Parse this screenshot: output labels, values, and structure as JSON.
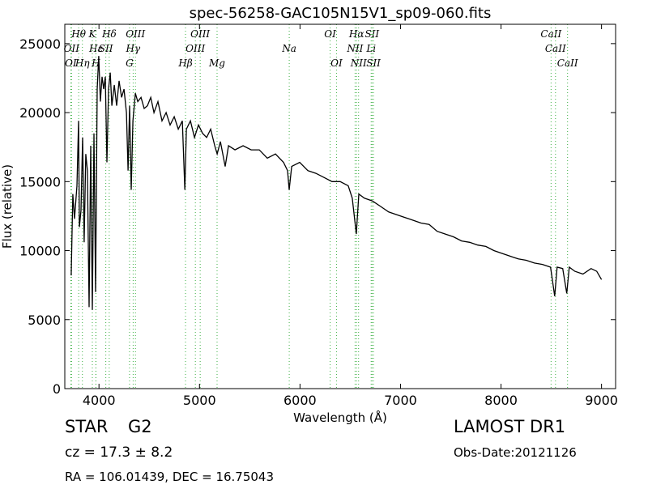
{
  "chart_data": {
    "type": "line",
    "title": "spec-56258-GAC105N15V1_sp09-060.fits",
    "x_label": "Wavelength (Å)",
    "y_label": "Flux (relative)",
    "xlim": [
      3660,
      9140
    ],
    "ylim": [
      0,
      26400
    ],
    "xticks": [
      4000,
      5000,
      6000,
      7000,
      8000,
      9000
    ],
    "yticks": [
      0,
      5000,
      10000,
      15000,
      20000,
      25000
    ],
    "color": "#000000",
    "line_color": "#3cb043",
    "x": [
      3724,
      3740,
      3757,
      3781,
      3797,
      3805,
      3821,
      3837,
      3853,
      3869,
      3885,
      3902,
      3918,
      3934,
      3950,
      3966,
      3982,
      3998,
      4014,
      4031,
      4047,
      4063,
      4079,
      4095,
      4112,
      4128,
      4152,
      4176,
      4200,
      4225,
      4249,
      4273,
      4289,
      4305,
      4321,
      4338,
      4362,
      4386,
      4418,
      4450,
      4482,
      4515,
      4547,
      4587,
      4627,
      4668,
      4708,
      4749,
      4789,
      4829,
      4854,
      4870,
      4910,
      4950,
      4990,
      5031,
      5071,
      5111,
      5152,
      5176,
      5208,
      5256,
      5289,
      5353,
      5434,
      5514,
      5595,
      5675,
      5756,
      5836,
      5876,
      5892,
      5917,
      5997,
      6078,
      6158,
      6239,
      6319,
      6400,
      6480,
      6520,
      6560,
      6585,
      6641,
      6721,
      6802,
      6882,
      6963,
      7043,
      7124,
      7204,
      7285,
      7365,
      7446,
      7527,
      7607,
      7688,
      7768,
      7849,
      7929,
      8010,
      8090,
      8171,
      8251,
      8332,
      8412,
      8493,
      8534,
      8558,
      8614,
      8654,
      8679,
      8735,
      8815,
      8896,
      8952,
      9000
    ],
    "values": [
      8200,
      14100,
      12300,
      14700,
      19400,
      11700,
      12900,
      18200,
      10600,
      17000,
      15800,
      5900,
      17600,
      5700,
      18500,
      7000,
      21700,
      24100,
      20800,
      22600,
      21700,
      22600,
      16400,
      21700,
      22900,
      20500,
      22000,
      20500,
      22300,
      21100,
      21700,
      20000,
      15800,
      20500,
      14400,
      19400,
      21400,
      20800,
      21100,
      20300,
      20500,
      21100,
      20000,
      20800,
      19400,
      20000,
      19100,
      19700,
      18800,
      19400,
      14400,
      18800,
      19400,
      18200,
      19100,
      18500,
      18200,
      18800,
      17600,
      17000,
      17900,
      16100,
      17600,
      17300,
      17600,
      17300,
      17300,
      16700,
      17000,
      16400,
      15800,
      14400,
      16100,
      16400,
      15800,
      15600,
      15300,
      15000,
      15000,
      14700,
      13800,
      11200,
      14100,
      13800,
      13600,
      13200,
      12800,
      12600,
      12400,
      12200,
      12000,
      11900,
      11400,
      11200,
      11000,
      10700,
      10600,
      10400,
      10300,
      10000,
      9800,
      9600,
      9400,
      9300,
      9100,
      9000,
      8800,
      6700,
      8800,
      8700,
      6900,
      8800,
      8500,
      8300,
      8700,
      8500,
      7900
    ],
    "lines": [
      {
        "label": "Hθ",
        "x": 3798
      },
      {
        "label": "OII",
        "x": 3727
      },
      {
        "label": "OI",
        "x": 3720
      },
      {
        "label": "Hη",
        "x": 3835
      },
      {
        "label": "K",
        "x": 3934
      },
      {
        "label": "Hε",
        "x": 3970
      },
      {
        "label": "H",
        "x": 3969
      },
      {
        "label": "SII",
        "x": 4068
      },
      {
        "label": "Hδ",
        "x": 4102
      },
      {
        "label": "OIII",
        "x": 4363
      },
      {
        "label": "Hγ",
        "x": 4340
      },
      {
        "label": "G",
        "x": 4304
      },
      {
        "label": "OIII",
        "x": 5007
      },
      {
        "label": "OIII",
        "x": 4959
      },
      {
        "label": "Hβ",
        "x": 4861
      },
      {
        "label": "Mg",
        "x": 5175
      },
      {
        "label": "Na",
        "x": 5893
      },
      {
        "label": "OI",
        "x": 6300
      },
      {
        "label": "OI",
        "x": 6363
      },
      {
        "label": "Hα",
        "x": 6563
      },
      {
        "label": "NII",
        "x": 6548
      },
      {
        "label": "NII",
        "x": 6583
      },
      {
        "label": "SII",
        "x": 6717
      },
      {
        "label": "Li",
        "x": 6708
      },
      {
        "label": "SII",
        "x": 6731
      },
      {
        "label": "CaII",
        "x": 8498
      },
      {
        "label": "CaII",
        "x": 8542
      },
      {
        "label": "CaII",
        "x": 8662
      }
    ]
  },
  "info": {
    "class": "STAR",
    "subclass": "G2",
    "cz": "cz = 17.3 ± 8.2",
    "coords": "RA = 106.01439, DEC = 16.75043",
    "survey": "LAMOST DR1",
    "date": "Obs-Date:20121126"
  }
}
